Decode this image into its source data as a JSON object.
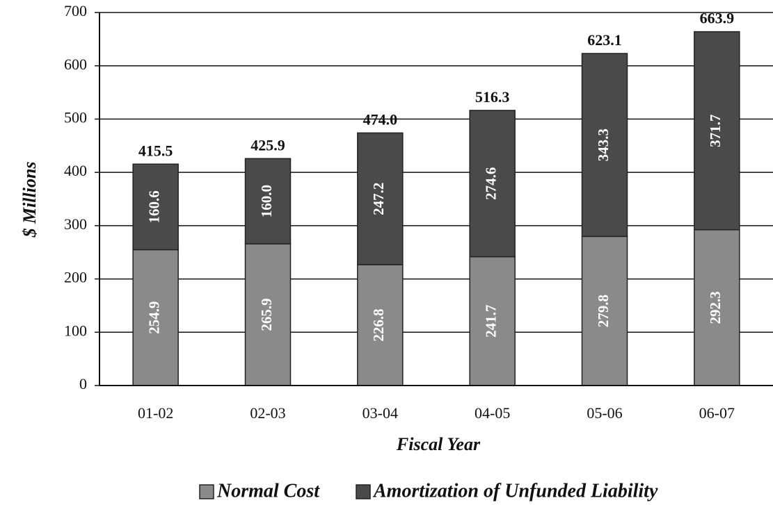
{
  "chart_data": {
    "type": "stacked_bar",
    "xlabel": "Fiscal Year",
    "ylabel": "$ Millions",
    "categories": [
      "01-02",
      "02-03",
      "03-04",
      "04-05",
      "05-06",
      "06-07"
    ],
    "series": [
      {
        "name": "Normal Cost",
        "color": "#8a8a8a",
        "values": [
          254.9,
          265.9,
          226.8,
          241.7,
          279.8,
          292.3
        ]
      },
      {
        "name": "Amortization of Unfunded Liability",
        "color": "#4a4a4a",
        "values": [
          160.6,
          160.0,
          247.2,
          274.6,
          343.3,
          371.7
        ],
        "value_labels": [
          "160.6",
          "160.0",
          "247.2",
          "274.6",
          "343.3",
          "371.7"
        ]
      }
    ],
    "totals": [
      415.5,
      425.9,
      474.0,
      516.3,
      623.1,
      663.9
    ],
    "total_labels": [
      "415.5",
      "425.9",
      "474.0",
      "516.3",
      "623.1",
      "663.9"
    ],
    "ylim": [
      0,
      700
    ],
    "yticks": [
      0,
      100,
      200,
      300,
      400,
      500,
      600,
      700
    ],
    "grid": true
  }
}
